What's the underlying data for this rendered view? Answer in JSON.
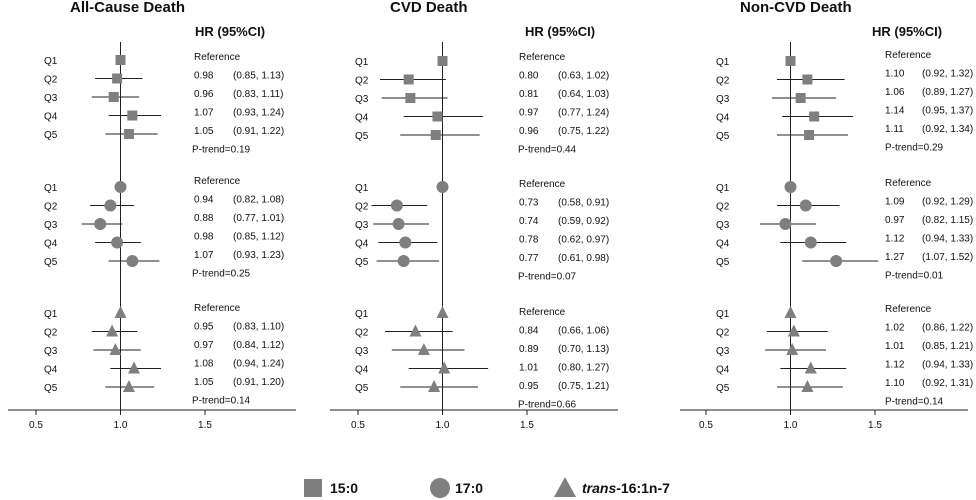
{
  "legend": [
    {
      "shape": "square",
      "prefix": "",
      "italic": "",
      "label": "15:0"
    },
    {
      "shape": "circle",
      "prefix": "",
      "italic": "",
      "label": "17:0"
    },
    {
      "shape": "triangle",
      "prefix": "",
      "italic": "trans",
      "label": "-16:1n-7"
    }
  ],
  "colors": {
    "marker": "#7f7f7f",
    "line": "#222222",
    "axis": "#222222"
  },
  "chart_data": [
    {
      "type": "forest",
      "title": "All-Cause Death",
      "column_header": "HR (95%CI)",
      "xlim": [
        0.5,
        1.5
      ],
      "reference_line": 1.0,
      "xticks": [
        "0.5",
        "1.0",
        "1.5"
      ],
      "groups": [
        {
          "series": "15:0",
          "shape": "square",
          "labels": [
            "Q1",
            "Q2",
            "Q3",
            "Q4",
            "Q5"
          ],
          "texts": [
            {
              "hr": "Reference",
              "ci": ""
            },
            {
              "hr": "0.98",
              "ci": "(0.85, 1.13)"
            },
            {
              "hr": "0.96",
              "ci": "(0.83, 1.11)"
            },
            {
              "hr": "1.07",
              "ci": "(0.93, 1.24)"
            },
            {
              "hr": "1.05",
              "ci": "(0.91, 1.22)"
            }
          ],
          "points": [
            {
              "hr": 1.0,
              "lo": null,
              "hi": null
            },
            {
              "hr": 0.98,
              "lo": 0.85,
              "hi": 1.13
            },
            {
              "hr": 0.96,
              "lo": 0.83,
              "hi": 1.11
            },
            {
              "hr": 1.07,
              "lo": 0.93,
              "hi": 1.24
            },
            {
              "hr": 1.05,
              "lo": 0.91,
              "hi": 1.22
            }
          ],
          "ptrend": "P-trend=0.19"
        },
        {
          "series": "17:0",
          "shape": "circle",
          "labels": [
            "Q1",
            "Q2",
            "Q3",
            "Q4",
            "Q5"
          ],
          "texts": [
            {
              "hr": "Reference",
              "ci": ""
            },
            {
              "hr": "0.94",
              "ci": "(0.82, 1.08)"
            },
            {
              "hr": "0.88",
              "ci": "(0.77, 1.01)"
            },
            {
              "hr": "0.98",
              "ci": "(0.85, 1.12)"
            },
            {
              "hr": "1.07",
              "ci": "(0.93, 1.23)"
            }
          ],
          "points": [
            {
              "hr": 1.0,
              "lo": null,
              "hi": null
            },
            {
              "hr": 0.94,
              "lo": 0.82,
              "hi": 1.08
            },
            {
              "hr": 0.88,
              "lo": 0.77,
              "hi": 1.01
            },
            {
              "hr": 0.98,
              "lo": 0.85,
              "hi": 1.12
            },
            {
              "hr": 1.07,
              "lo": 0.93,
              "hi": 1.23
            }
          ],
          "ptrend": "P-trend=0.25"
        },
        {
          "series": "trans-16:1n-7",
          "shape": "triangle",
          "labels": [
            "Q1",
            "Q2",
            "Q3",
            "Q4",
            "Q5"
          ],
          "texts": [
            {
              "hr": "Reference",
              "ci": ""
            },
            {
              "hr": "0.95",
              "ci": "(0.83, 1.10)"
            },
            {
              "hr": "0.97",
              "ci": "(0.84, 1.12)"
            },
            {
              "hr": "1.08",
              "ci": "(0.94, 1.24)"
            },
            {
              "hr": "1.05",
              "ci": "(0.91, 1.20)"
            }
          ],
          "points": [
            {
              "hr": 1.0,
              "lo": null,
              "hi": null
            },
            {
              "hr": 0.95,
              "lo": 0.83,
              "hi": 1.1
            },
            {
              "hr": 0.97,
              "lo": 0.84,
              "hi": 1.12
            },
            {
              "hr": 1.08,
              "lo": 0.94,
              "hi": 1.24
            },
            {
              "hr": 1.05,
              "lo": 0.91,
              "hi": 1.2
            }
          ],
          "ptrend": "P-trend=0.14"
        }
      ]
    },
    {
      "type": "forest",
      "title": "CVD Death",
      "column_header": "HR (95%CI)",
      "xlim": [
        0.5,
        1.5
      ],
      "reference_line": 1.0,
      "xticks": [
        "0.5",
        "1.0",
        "1.5"
      ],
      "groups": [
        {
          "series": "15:0",
          "shape": "square",
          "labels": [
            "Q1",
            "Q2",
            "Q3",
            "Q4",
            "Q5"
          ],
          "texts": [
            {
              "hr": "Reference",
              "ci": ""
            },
            {
              "hr": "0.80",
              "ci": "(0.63, 1.02)"
            },
            {
              "hr": "0.81",
              "ci": "(0.64, 1.03)"
            },
            {
              "hr": "0.97",
              "ci": "(0.77, 1.24)"
            },
            {
              "hr": "0.96",
              "ci": "(0.75, 1.22)"
            }
          ],
          "points": [
            {
              "hr": 1.0,
              "lo": null,
              "hi": null
            },
            {
              "hr": 0.8,
              "lo": 0.63,
              "hi": 1.02
            },
            {
              "hr": 0.81,
              "lo": 0.64,
              "hi": 1.03
            },
            {
              "hr": 0.97,
              "lo": 0.77,
              "hi": 1.24
            },
            {
              "hr": 0.96,
              "lo": 0.75,
              "hi": 1.22
            }
          ],
          "ptrend": "P-trend=0.44"
        },
        {
          "series": "17:0",
          "shape": "circle",
          "labels": [
            "Q1",
            "Q2",
            "Q3",
            "Q4",
            "Q5"
          ],
          "texts": [
            {
              "hr": "Reference",
              "ci": ""
            },
            {
              "hr": "0.73",
              "ci": "(0.58, 0.91)"
            },
            {
              "hr": "0.74",
              "ci": "(0.59, 0.92)"
            },
            {
              "hr": "0.78",
              "ci": "(0.62, 0.97)"
            },
            {
              "hr": "0.77",
              "ci": "(0.61, 0.98)"
            }
          ],
          "points": [
            {
              "hr": 1.0,
              "lo": null,
              "hi": null
            },
            {
              "hr": 0.73,
              "lo": 0.58,
              "hi": 0.91
            },
            {
              "hr": 0.74,
              "lo": 0.59,
              "hi": 0.92
            },
            {
              "hr": 0.78,
              "lo": 0.62,
              "hi": 0.97
            },
            {
              "hr": 0.77,
              "lo": 0.61,
              "hi": 0.98
            }
          ],
          "ptrend": "P-trend=0.07"
        },
        {
          "series": "trans-16:1n-7",
          "shape": "triangle",
          "labels": [
            "Q1",
            "Q2",
            "Q3",
            "Q4",
            "Q5"
          ],
          "texts": [
            {
              "hr": "Reference",
              "ci": ""
            },
            {
              "hr": "0.84",
              "ci": "(0.66, 1.06)"
            },
            {
              "hr": "0.89",
              "ci": "(0.70, 1.13)"
            },
            {
              "hr": "1.01",
              "ci": "(0.80, 1.27)"
            },
            {
              "hr": "0.95",
              "ci": "(0.75, 1.21)"
            }
          ],
          "points": [
            {
              "hr": 1.0,
              "lo": null,
              "hi": null
            },
            {
              "hr": 0.84,
              "lo": 0.66,
              "hi": 1.06
            },
            {
              "hr": 0.89,
              "lo": 0.7,
              "hi": 1.13
            },
            {
              "hr": 1.01,
              "lo": 0.8,
              "hi": 1.27
            },
            {
              "hr": 0.95,
              "lo": 0.75,
              "hi": 1.21
            }
          ],
          "ptrend": "P-trend=0.66"
        }
      ]
    },
    {
      "type": "forest",
      "title": "Non-CVD Death",
      "column_header": "HR (95%CI)",
      "xlim": [
        0.5,
        1.5
      ],
      "reference_line": 1.0,
      "xticks": [
        "0.5",
        "1.0",
        "1.5"
      ],
      "groups": [
        {
          "series": "15:0",
          "shape": "square",
          "labels": [
            "Q1",
            "Q2",
            "Q3",
            "Q4",
            "Q5"
          ],
          "texts": [
            {
              "hr": "Reference",
              "ci": ""
            },
            {
              "hr": "1.10",
              "ci": "(0.92, 1.32)"
            },
            {
              "hr": "1.06",
              "ci": "(0.89, 1.27)"
            },
            {
              "hr": "1.14",
              "ci": "(0.95, 1.37)"
            },
            {
              "hr": "1.11",
              "ci": "(0.92, 1.34)"
            }
          ],
          "points": [
            {
              "hr": 1.0,
              "lo": null,
              "hi": null
            },
            {
              "hr": 1.1,
              "lo": 0.92,
              "hi": 1.32
            },
            {
              "hr": 1.06,
              "lo": 0.89,
              "hi": 1.27
            },
            {
              "hr": 1.14,
              "lo": 0.95,
              "hi": 1.37
            },
            {
              "hr": 1.11,
              "lo": 0.92,
              "hi": 1.34
            }
          ],
          "ptrend": "P-trend=0.29"
        },
        {
          "series": "17:0",
          "shape": "circle",
          "labels": [
            "Q1",
            "Q2",
            "Q3",
            "Q4",
            "Q5"
          ],
          "texts": [
            {
              "hr": "Reference",
              "ci": ""
            },
            {
              "hr": "1.09",
              "ci": "(0.92, 1.29)"
            },
            {
              "hr": "0.97",
              "ci": "(0.82, 1.15)"
            },
            {
              "hr": "1.12",
              "ci": "(0.94, 1.33)"
            },
            {
              "hr": "1.27",
              "ci": "(1.07, 1.52)"
            }
          ],
          "points": [
            {
              "hr": 1.0,
              "lo": null,
              "hi": null
            },
            {
              "hr": 1.09,
              "lo": 0.92,
              "hi": 1.29
            },
            {
              "hr": 0.97,
              "lo": 0.82,
              "hi": 1.15
            },
            {
              "hr": 1.12,
              "lo": 0.94,
              "hi": 1.33
            },
            {
              "hr": 1.27,
              "lo": 1.07,
              "hi": 1.52
            }
          ],
          "ptrend": "P-trend=0.01"
        },
        {
          "series": "trans-16:1n-7",
          "shape": "triangle",
          "labels": [
            "Q1",
            "Q2",
            "Q3",
            "Q4",
            "Q5"
          ],
          "texts": [
            {
              "hr": "Reference",
              "ci": ""
            },
            {
              "hr": "1.02",
              "ci": "(0.86, 1.22)"
            },
            {
              "hr": "1.01",
              "ci": "(0.85, 1.21)"
            },
            {
              "hr": "1.12",
              "ci": "(0.94, 1.33)"
            },
            {
              "hr": "1.10",
              "ci": "(0.92, 1.31)"
            }
          ],
          "points": [
            {
              "hr": 1.0,
              "lo": null,
              "hi": null
            },
            {
              "hr": 1.02,
              "lo": 0.86,
              "hi": 1.22
            },
            {
              "hr": 1.01,
              "lo": 0.85,
              "hi": 1.21
            },
            {
              "hr": 1.12,
              "lo": 0.94,
              "hi": 1.33
            },
            {
              "hr": 1.1,
              "lo": 0.92,
              "hi": 1.31
            }
          ],
          "ptrend": "P-trend=0.14"
        }
      ]
    }
  ]
}
